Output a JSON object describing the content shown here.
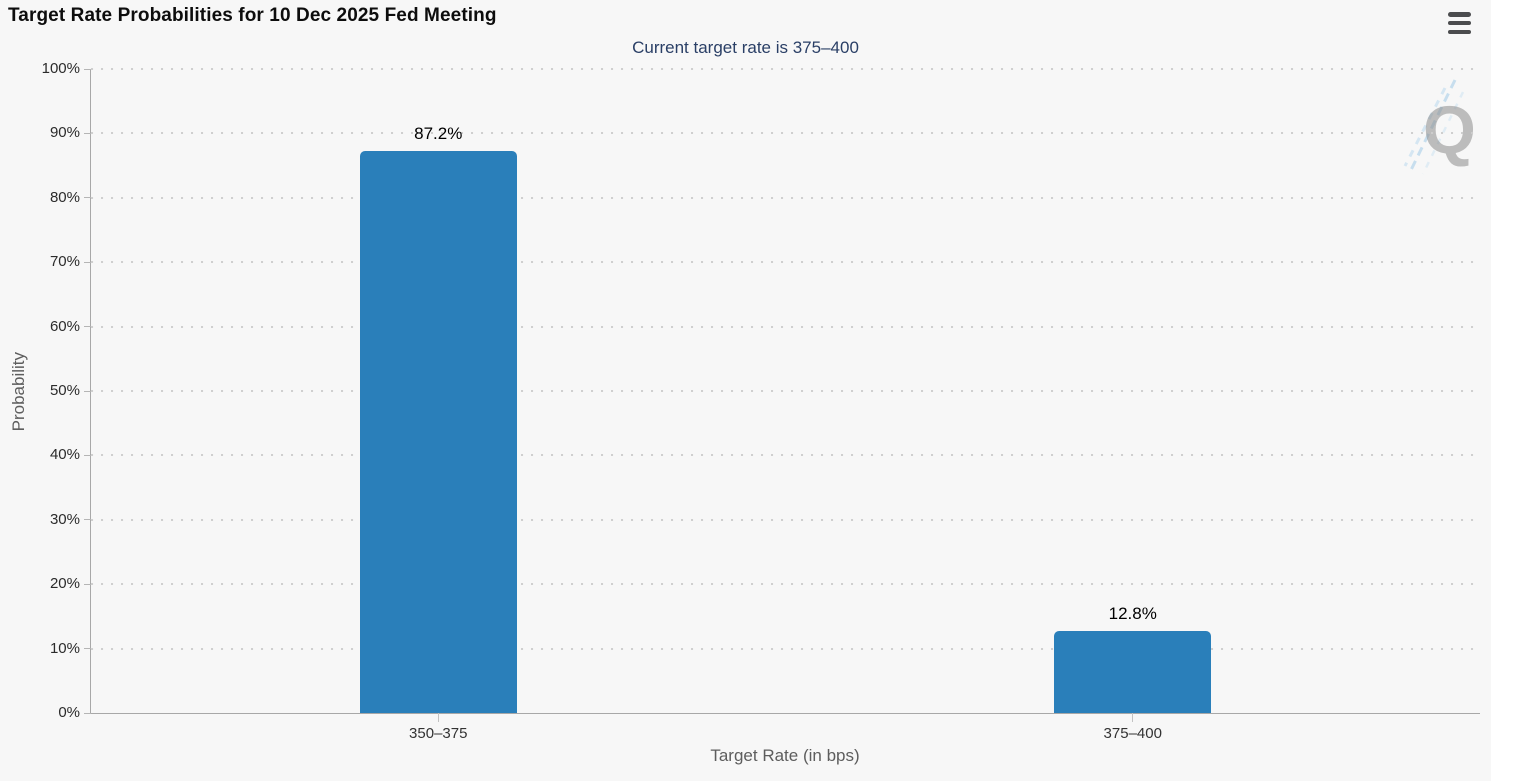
{
  "header": {
    "title": "Target Rate Probabilities for 10 Dec 2025 Fed Meeting"
  },
  "toolbar": {
    "menu_icon": "hamburger-icon"
  },
  "watermark": {
    "letter": "Q"
  },
  "chart_data": {
    "type": "bar",
    "title": "Target Rate Probabilities for 10 Dec 2025 Fed Meeting",
    "subtitle": "Current target rate is 375–400",
    "categories": [
      "350–375",
      "375–400"
    ],
    "values": [
      87.2,
      12.8
    ],
    "value_labels": [
      "87.2%",
      "12.8%"
    ],
    "xlabel": "Target Rate (in bps)",
    "ylabel": "Probability",
    "ylim": [
      0,
      100
    ],
    "ytick_step": 10,
    "ytick_labels": [
      "0%",
      "10%",
      "20%",
      "30%",
      "40%",
      "50%",
      "60%",
      "70%",
      "80%",
      "90%",
      "100%"
    ],
    "grid": "horizontal-dotted",
    "legend": "none",
    "bar_color": "#2a7fba",
    "subtitle_color": "#2a3f66",
    "background_color": "#f7f7f7"
  }
}
